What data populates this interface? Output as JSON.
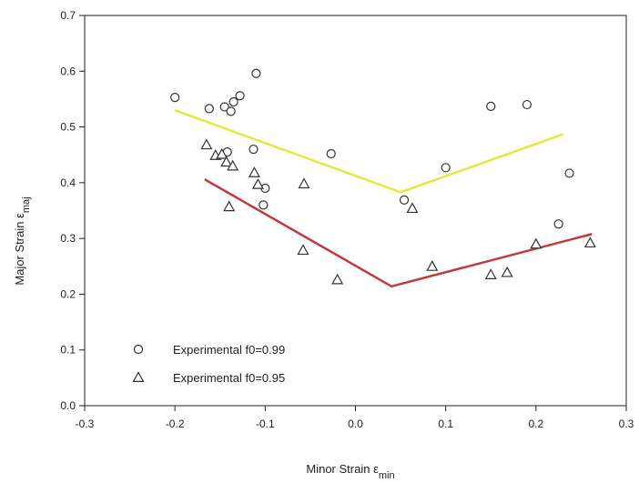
{
  "chart_data": {
    "type": "scatter",
    "title": "",
    "xlabel": "Minor Strain ε",
    "xlabel_sub": "min",
    "ylabel": "Major Strain ε",
    "ylabel_sub": "maj",
    "xlim": [
      -0.3,
      0.3
    ],
    "ylim": [
      0.0,
      0.7
    ],
    "xticks": [
      -0.3,
      -0.2,
      -0.1,
      0.0,
      0.1,
      0.2,
      0.3
    ],
    "xtick_labels": [
      "-0.3",
      "-0.2",
      "-0.1",
      "0.0",
      "0.1",
      "0.2",
      "0.3"
    ],
    "yticks": [
      0.0,
      0.1,
      0.2,
      0.3,
      0.4,
      0.5,
      0.6,
      0.7
    ],
    "ytick_labels": [
      "0.0",
      "0.1",
      "0.2",
      "0.3",
      "0.4",
      "0.5",
      "0.6",
      "0.7"
    ],
    "grid": false,
    "legend_position": "bottom-left",
    "series": [
      {
        "name": "Experimental f0=0.99",
        "marker": "circle",
        "color": "#333333",
        "points": [
          [
            -0.2,
            0.553
          ],
          [
            -0.162,
            0.533
          ],
          [
            -0.145,
            0.536
          ],
          [
            -0.138,
            0.528
          ],
          [
            -0.135,
            0.545
          ],
          [
            -0.128,
            0.556
          ],
          [
            -0.11,
            0.596
          ],
          [
            -0.142,
            0.455
          ],
          [
            -0.113,
            0.46
          ],
          [
            -0.1,
            0.39
          ],
          [
            -0.102,
            0.36
          ],
          [
            -0.027,
            0.452
          ],
          [
            0.054,
            0.369
          ],
          [
            0.1,
            0.427
          ],
          [
            0.15,
            0.537
          ],
          [
            0.19,
            0.54
          ],
          [
            0.225,
            0.326
          ],
          [
            0.237,
            0.417
          ]
        ]
      },
      {
        "name": "Experimental f0=0.95",
        "marker": "triangle",
        "color": "#333333",
        "points": [
          [
            -0.165,
            0.468
          ],
          [
            -0.155,
            0.449
          ],
          [
            -0.148,
            0.451
          ],
          [
            -0.143,
            0.437
          ],
          [
            -0.136,
            0.43
          ],
          [
            -0.112,
            0.418
          ],
          [
            -0.108,
            0.397
          ],
          [
            -0.14,
            0.357
          ],
          [
            -0.057,
            0.398
          ],
          [
            -0.058,
            0.279
          ],
          [
            -0.02,
            0.226
          ],
          [
            0.063,
            0.354
          ],
          [
            0.085,
            0.25
          ],
          [
            0.15,
            0.235
          ],
          [
            0.168,
            0.239
          ],
          [
            0.2,
            0.29
          ],
          [
            0.26,
            0.292
          ]
        ]
      }
    ],
    "lines": [
      {
        "color": "#e8e83a",
        "points": [
          [
            -0.2,
            0.53
          ],
          [
            0.05,
            0.383
          ],
          [
            0.23,
            0.487
          ]
        ]
      },
      {
        "color": "#c0393b",
        "points": [
          [
            -0.167,
            0.406
          ],
          [
            0.04,
            0.214
          ],
          [
            0.262,
            0.308
          ]
        ]
      }
    ]
  }
}
